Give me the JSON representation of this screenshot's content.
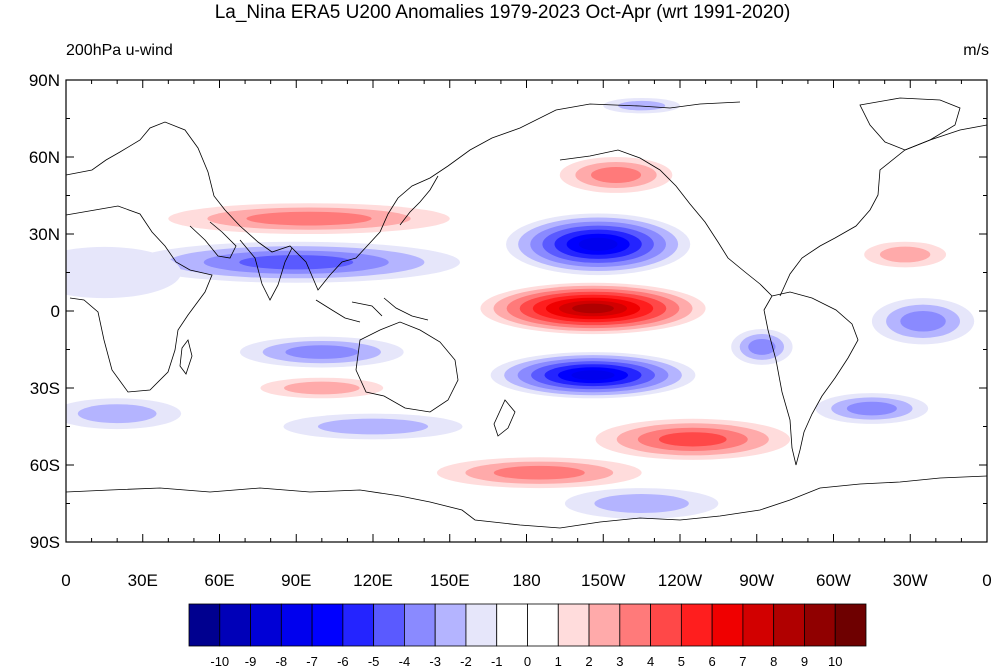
{
  "title": "La_Nina ERA5 U200 Anomalies 1979-2023 Oct-Apr (wrt 1991-2020)",
  "left_subtitle": "200hPa u-wind",
  "right_subtitle": "m/s",
  "lat_ticks": [
    {
      "v": 90,
      "label": "90N"
    },
    {
      "v": 60,
      "label": "60N"
    },
    {
      "v": 30,
      "label": "30N"
    },
    {
      "v": 0,
      "label": "0"
    },
    {
      "v": -30,
      "label": "30S"
    },
    {
      "v": -60,
      "label": "60S"
    },
    {
      "v": -90,
      "label": "90S"
    }
  ],
  "lon_ticks": [
    {
      "v": 0,
      "label": "0"
    },
    {
      "v": 30,
      "label": "30E"
    },
    {
      "v": 60,
      "label": "60E"
    },
    {
      "v": 90,
      "label": "90E"
    },
    {
      "v": 120,
      "label": "120E"
    },
    {
      "v": 150,
      "label": "150E"
    },
    {
      "v": 180,
      "label": "180"
    },
    {
      "v": 210,
      "label": "150W"
    },
    {
      "v": 240,
      "label": "120W"
    },
    {
      "v": 270,
      "label": "90W"
    },
    {
      "v": 300,
      "label": "60W"
    },
    {
      "v": 330,
      "label": "30W"
    },
    {
      "v": 360,
      "label": "0"
    }
  ],
  "colorbar": {
    "labels": [
      "-10",
      "-9",
      "-8",
      "-7",
      "-6",
      "-5",
      "-4",
      "-3",
      "-2",
      "-1",
      "0",
      "1",
      "2",
      "3",
      "4",
      "5",
      "6",
      "7",
      "8",
      "9",
      "10"
    ],
    "colors": [
      "#00008f",
      "#0000b8",
      "#0000d6",
      "#0000ee",
      "#0000ff",
      "#2424ff",
      "#5a5aff",
      "#8a8aff",
      "#b4b4ff",
      "#e6e6fa",
      "#ffffff",
      "#ffffff",
      "#ffdcdc",
      "#ffaaaa",
      "#ff7a7a",
      "#ff4848",
      "#ff1e1e",
      "#f00000",
      "#d20000",
      "#b00000",
      "#900000",
      "#6e0000"
    ]
  },
  "anomaly_blobs": [
    {
      "lon": 208,
      "lat": 26,
      "rlon": 36,
      "rlat": 12,
      "v": -7
    },
    {
      "lon": 206,
      "lat": 1,
      "rlon": 44,
      "rlat": 10,
      "v": 8
    },
    {
      "lon": 206,
      "lat": -25,
      "rlon": 40,
      "rlat": 9,
      "v": -7
    },
    {
      "lon": 90,
      "lat": 19,
      "rlon": 64,
      "rlat": 8,
      "v": -4
    },
    {
      "lon": 95,
      "lat": 36,
      "rlon": 55,
      "rlat": 6,
      "v": 3
    },
    {
      "lon": 215,
      "lat": 53,
      "rlon": 22,
      "rlat": 7,
      "v": 3
    },
    {
      "lon": 245,
      "lat": -50,
      "rlon": 38,
      "rlat": 8,
      "v": 4
    },
    {
      "lon": 185,
      "lat": -63,
      "rlon": 40,
      "rlat": 6,
      "v": 3
    },
    {
      "lon": 100,
      "lat": -16,
      "rlon": 32,
      "rlat": 6,
      "v": -3
    },
    {
      "lon": 100,
      "lat": -30,
      "rlon": 24,
      "rlat": 4,
      "v": 2
    },
    {
      "lon": 335,
      "lat": -4,
      "rlon": 20,
      "rlat": 9,
      "v": -3
    },
    {
      "lon": 272,
      "lat": -14,
      "rlon": 12,
      "rlat": 7,
      "v": -3
    },
    {
      "lon": 315,
      "lat": -38,
      "rlon": 22,
      "rlat": 6,
      "v": -3
    },
    {
      "lon": 328,
      "lat": 22,
      "rlon": 16,
      "rlat": 5,
      "v": 2
    },
    {
      "lon": 225,
      "lat": -75,
      "rlon": 30,
      "rlat": 6,
      "v": -2
    },
    {
      "lon": 120,
      "lat": -45,
      "rlon": 35,
      "rlat": 5,
      "v": -2
    },
    {
      "lon": 20,
      "lat": -40,
      "rlon": 25,
      "rlat": 6,
      "v": -2
    },
    {
      "lon": 225,
      "lat": 80,
      "rlon": 15,
      "rlat": 3,
      "v": -2
    },
    {
      "lon": 15,
      "lat": 15,
      "rlon": 30,
      "rlat": 10,
      "v": -1
    }
  ]
}
